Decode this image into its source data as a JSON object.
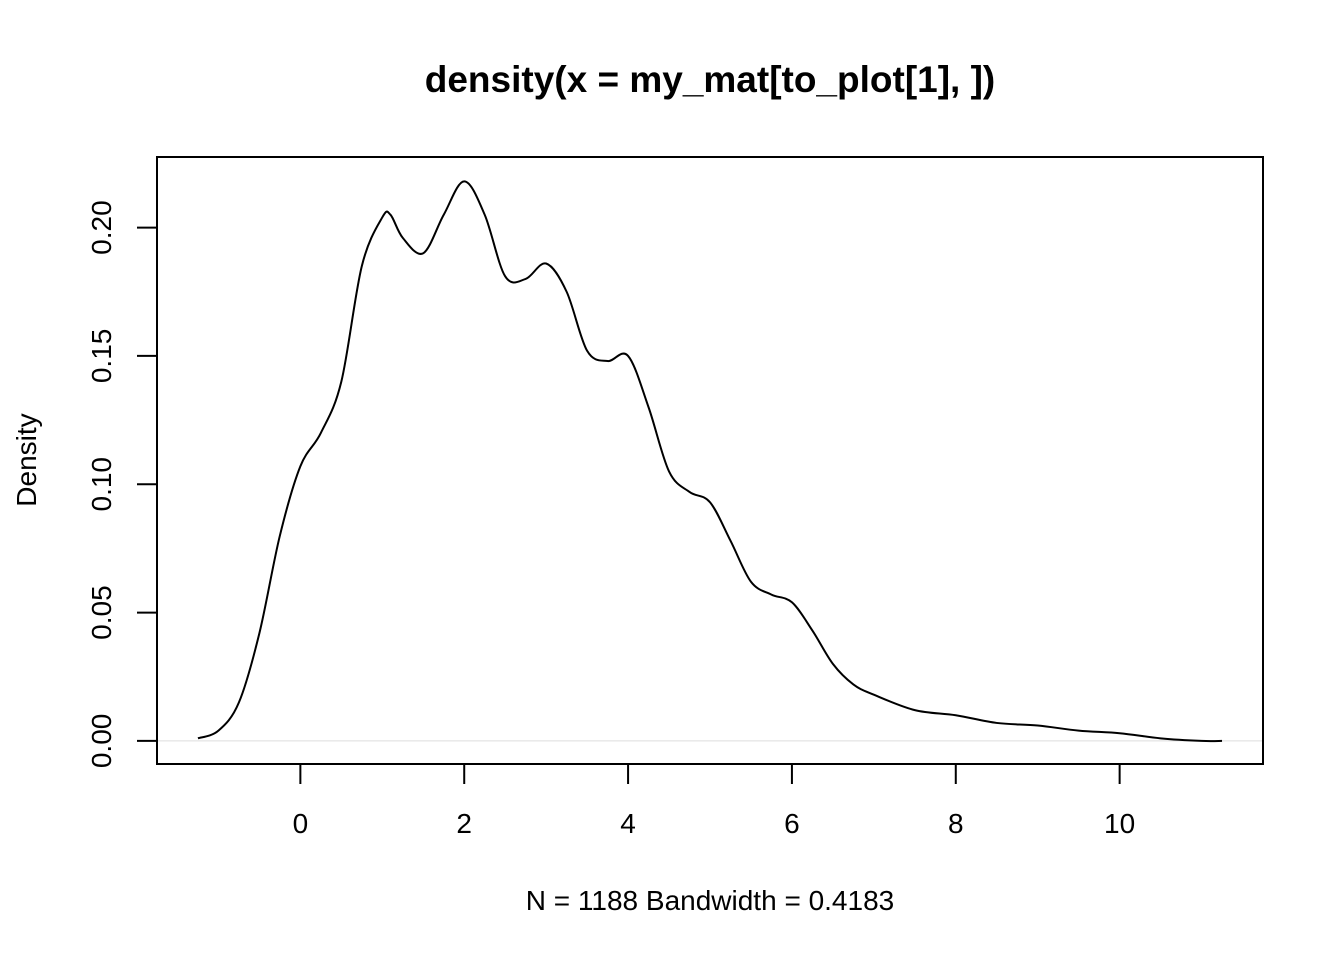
{
  "chart_data": {
    "type": "line",
    "title": "density(x = my_mat[to_plot[1], ])",
    "xlabel": "N = 1188   Bandwidth = 0.4183",
    "ylabel": "Density",
    "xlim": [
      -1.75,
      11.75
    ],
    "ylim": [
      -0.009,
      0.2275
    ],
    "x_ticks": [
      0,
      2,
      4,
      6,
      8,
      10
    ],
    "x_tick_labels": [
      "0",
      "2",
      "4",
      "6",
      "8",
      "10"
    ],
    "y_ticks": [
      0.0,
      0.05,
      0.1,
      0.15,
      0.2
    ],
    "y_tick_labels": [
      "0.00",
      "0.05",
      "0.10",
      "0.15",
      "0.20"
    ],
    "grid": false,
    "baseline": 0,
    "baseline_color": "#dddddd",
    "line_color": "#000000",
    "series": [
      {
        "x": [
          -1.25,
          -1.0,
          -0.75,
          -0.5,
          -0.25,
          0.0,
          0.25,
          0.5,
          0.75,
          1.0,
          1.1,
          1.25,
          1.5,
          1.75,
          2.0,
          2.25,
          2.5,
          2.75,
          3.0,
          3.25,
          3.5,
          3.75,
          4.0,
          4.25,
          4.5,
          4.75,
          5.0,
          5.25,
          5.5,
          5.75,
          6.0,
          6.25,
          6.5,
          6.75,
          7.0,
          7.5,
          8.0,
          8.5,
          9.0,
          9.5,
          10.0,
          10.5,
          11.0,
          11.25
        ],
        "y": [
          0.001,
          0.004,
          0.015,
          0.042,
          0.08,
          0.107,
          0.12,
          0.14,
          0.185,
          0.204,
          0.205,
          0.196,
          0.19,
          0.205,
          0.218,
          0.205,
          0.181,
          0.18,
          0.186,
          0.175,
          0.152,
          0.148,
          0.15,
          0.13,
          0.105,
          0.097,
          0.093,
          0.078,
          0.062,
          0.057,
          0.054,
          0.043,
          0.03,
          0.022,
          0.018,
          0.012,
          0.01,
          0.007,
          0.006,
          0.004,
          0.003,
          0.001,
          0.0,
          0.0
        ]
      }
    ]
  }
}
